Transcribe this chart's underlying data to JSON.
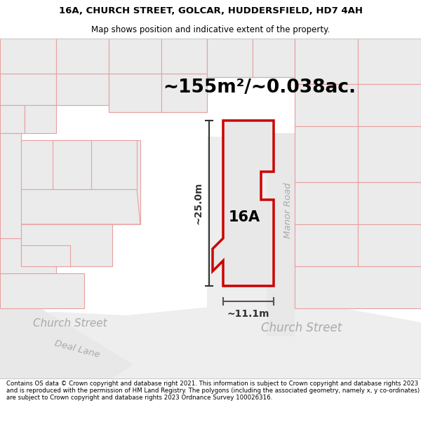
{
  "title_line1": "16A, CHURCH STREET, GOLCAR, HUDDERSFIELD, HD7 4AH",
  "title_line2": "Map shows position and indicative extent of the property.",
  "area_text": "~155m²/~0.038ac.",
  "label_16A": "16A",
  "label_manor_road": "Manor Road",
  "label_church_street_left": "Church Street",
  "label_church_street_right": "Church Street",
  "label_deal_lane": "Deal Lane",
  "dim_width": "~11.1m",
  "dim_height": "~25.0m",
  "footer_text": "Contains OS data © Crown copyright and database right 2021. This information is subject to Crown copyright and database rights 2023 and is reproduced with the permission of HM Land Registry. The polygons (including the associated geometry, namely x, y co-ordinates) are subject to Crown copyright and database rights 2023 Ordnance Survey 100026316.",
  "map_bg": "#ffffff",
  "building_fill": "#ebebeb",
  "building_edge": "#e8a0a0",
  "road_fill": "#f0f0f0",
  "road_fill2": "#e8e8e8",
  "prop_fill": "#e8e8e8",
  "prop_edge": "#cc0000",
  "road_label_color": "#aaaaaa",
  "dim_color": "#333333",
  "title_fontsize": 9.5,
  "subtitle_fontsize": 8.5,
  "area_fontsize": 19,
  "footer_fontsize": 6.2
}
